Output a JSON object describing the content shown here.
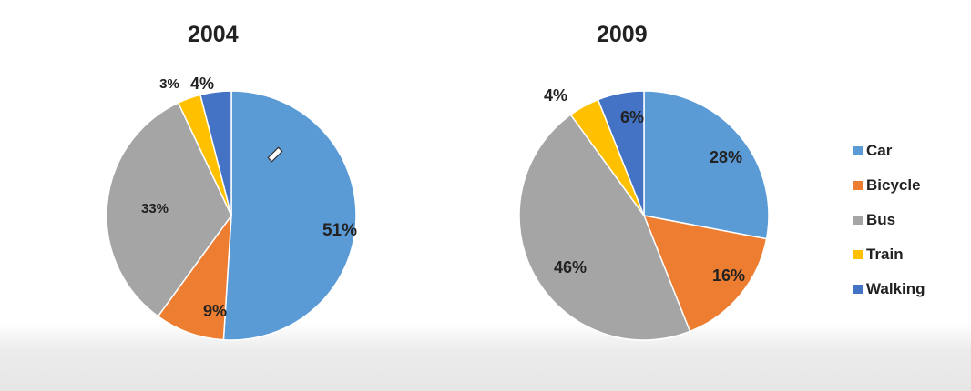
{
  "chart_data": [
    {
      "type": "pie",
      "title": "2004",
      "categories": [
        "Car",
        "Bicycle",
        "Bus",
        "Train",
        "Walking"
      ],
      "values": [
        51,
        9,
        33,
        3,
        4
      ],
      "labels": [
        "51%",
        "9%",
        "33%",
        "3%",
        "4%"
      ],
      "colors": [
        "#5b9bd5",
        "#ed7d31",
        "#a5a5a5",
        "#ffc000",
        "#4472c4"
      ]
    },
    {
      "type": "pie",
      "title": "2009",
      "categories": [
        "Car",
        "Bicycle",
        "Bus",
        "Train",
        "Walking"
      ],
      "values": [
        28,
        16,
        46,
        4,
        6
      ],
      "labels": [
        "28%",
        "16%",
        "46%",
        "4%",
        "6%"
      ],
      "colors": [
        "#5b9bd5",
        "#ed7d31",
        "#a5a5a5",
        "#ffc000",
        "#4472c4"
      ]
    }
  ],
  "legend": {
    "position": "right",
    "items": [
      {
        "label": "Car",
        "color": "#5b9bd5"
      },
      {
        "label": "Bicycle",
        "color": "#ed7d31"
      },
      {
        "label": "Bus",
        "color": "#a5a5a5"
      },
      {
        "label": "Train",
        "color": "#ffc000"
      },
      {
        "label": "Walking",
        "color": "#4472c4"
      }
    ]
  }
}
